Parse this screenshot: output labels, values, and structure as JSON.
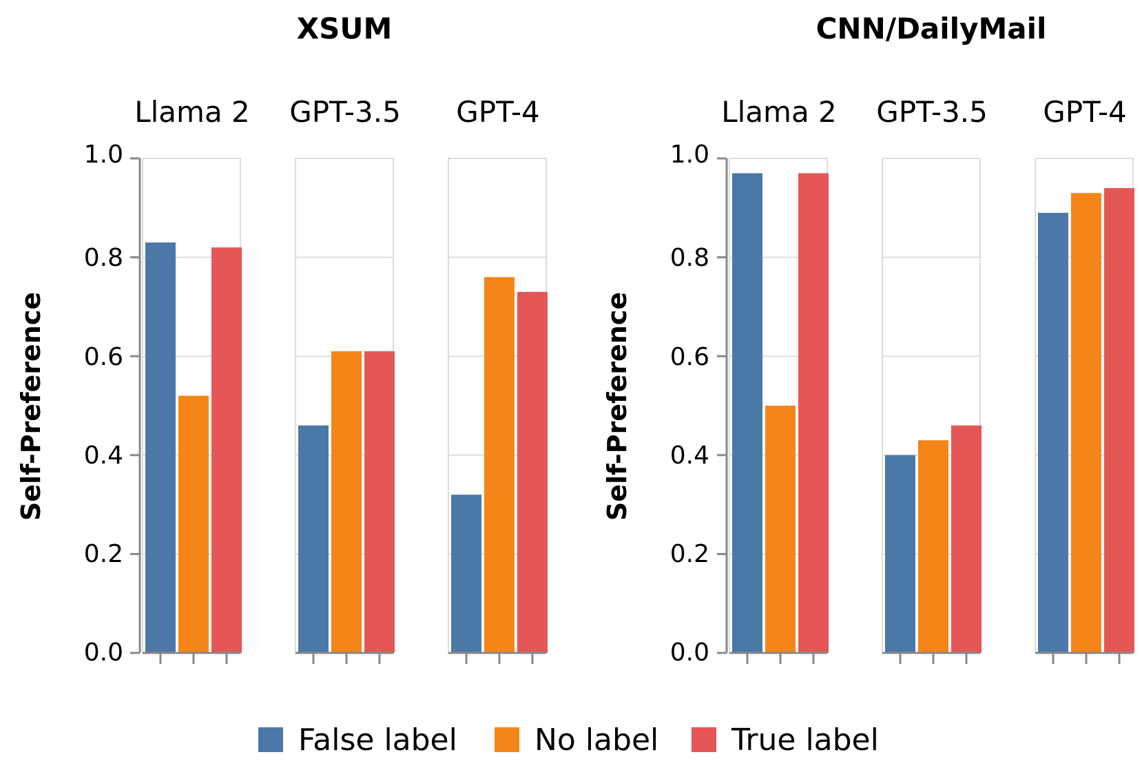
{
  "colors": {
    "False label": "#4c78a8",
    "No label": "#f58518",
    "True label": "#e45756",
    "grid": "#dddddd",
    "axis": "#888888"
  },
  "chart_data": [
    {
      "type": "bar",
      "title": "XSUM",
      "ylabel": "Self-Preference",
      "ylim": [
        0,
        1
      ],
      "yticks": [
        "0.0",
        "0.2",
        "0.4",
        "0.6",
        "0.8",
        "1.0"
      ],
      "grid": true,
      "categories": [
        "Llama 2",
        "GPT-3.5",
        "GPT-4"
      ],
      "series": [
        {
          "name": "False label",
          "values": [
            0.83,
            0.46,
            0.32
          ]
        },
        {
          "name": "No label",
          "values": [
            0.52,
            0.61,
            0.76
          ]
        },
        {
          "name": "True label",
          "values": [
            0.82,
            0.61,
            0.73
          ]
        }
      ]
    },
    {
      "type": "bar",
      "title": "CNN/DailyMail",
      "ylabel": "Self-Preference",
      "ylim": [
        0,
        1
      ],
      "yticks": [
        "0.0",
        "0.2",
        "0.4",
        "0.6",
        "0.8",
        "1.0"
      ],
      "grid": true,
      "categories": [
        "Llama 2",
        "GPT-3.5",
        "GPT-4"
      ],
      "series": [
        {
          "name": "False label",
          "values": [
            0.97,
            0.4,
            0.89
          ]
        },
        {
          "name": "No label",
          "values": [
            0.5,
            0.43,
            0.93
          ]
        },
        {
          "name": "True label",
          "values": [
            0.97,
            0.46,
            0.94
          ]
        }
      ]
    }
  ],
  "legend": {
    "placement": "bottom",
    "items": [
      "False label",
      "No label",
      "True label"
    ]
  }
}
